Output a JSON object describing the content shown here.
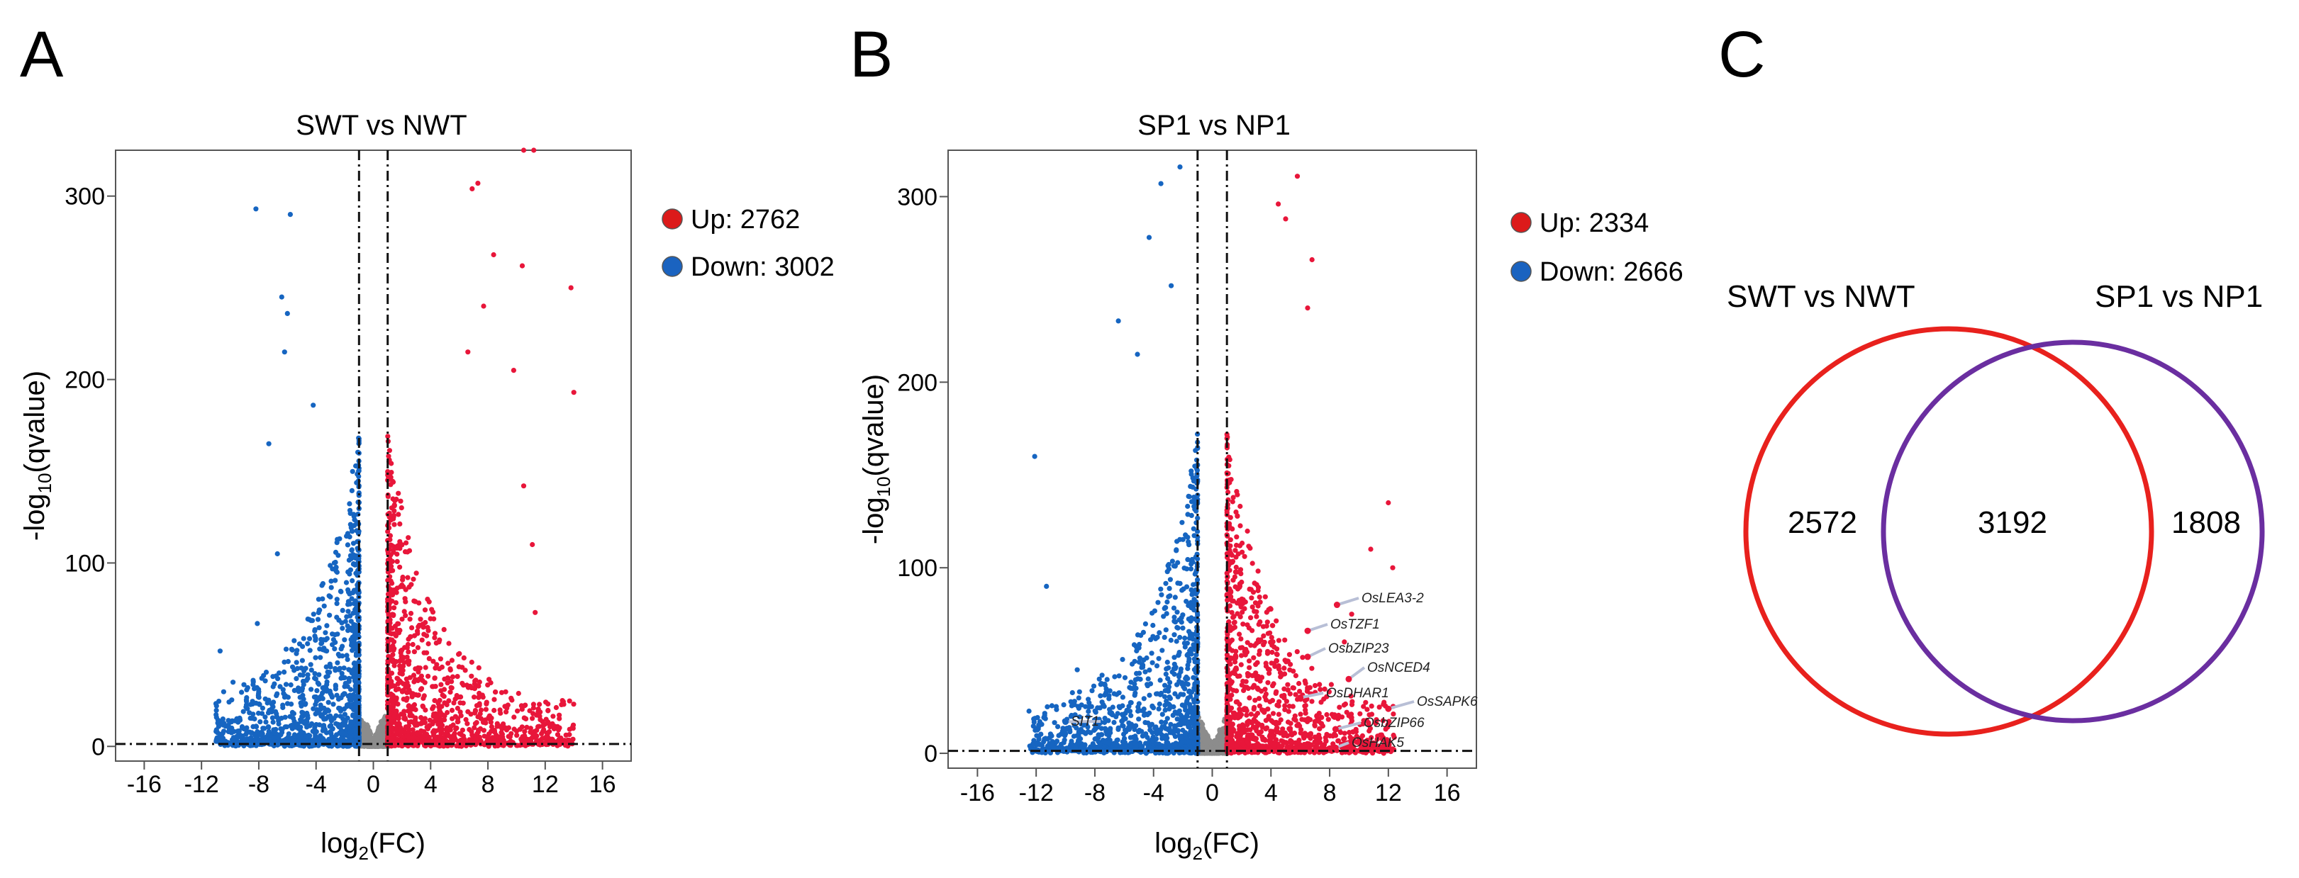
{
  "panels": {
    "A": "A",
    "B": "B",
    "C": "C"
  },
  "colors": {
    "up": "#e8163a",
    "down": "#1665c1",
    "ns": "#8c8c8c",
    "venn_left": "#e8211d",
    "venn_right": "#6a2ea0",
    "legend_up": "#dc1a1a",
    "legend_down": "#1a63c0"
  },
  "chart_data": [
    {
      "type": "scatter",
      "id": "volcano_A",
      "title": "SWT vs NWT",
      "xlabel_base": "log",
      "xlabel_sub": "2",
      "xlabel_rest": "(FC)",
      "ylabel_base": "-log",
      "ylabel_sub": "10",
      "ylabel_rest": "(qvalue)",
      "xlim": [
        -18,
        18
      ],
      "ylim": [
        -8,
        325
      ],
      "x_ticks": [
        -16,
        -12,
        -8,
        -4,
        0,
        4,
        8,
        12,
        16
      ],
      "y_ticks": [
        0,
        100,
        200,
        300
      ],
      "fc_threshold": [
        -1,
        1
      ],
      "q_threshold": 1.3,
      "legend": [
        {
          "label": "Up: 2762",
          "key": "up"
        },
        {
          "label": "Down: 3002",
          "key": "down"
        }
      ],
      "series": [
        {
          "name": "Up",
          "count": 2762,
          "x_range": [
            1,
            14
          ],
          "sample_points": [
            [
              10.5,
              325
            ],
            [
              11.2,
              325
            ],
            [
              7.3,
              307
            ],
            [
              6.9,
              304
            ],
            [
              10.4,
              262
            ],
            [
              13.8,
              250
            ],
            [
              14.0,
              193
            ],
            [
              7.7,
              240
            ],
            [
              6.6,
              215
            ],
            [
              8.4,
              268
            ],
            [
              9.8,
              205
            ],
            [
              10.5,
              142
            ],
            [
              11.1,
              110
            ],
            [
              11.3,
              73
            ]
          ]
        },
        {
          "name": "Down",
          "count": 3002,
          "x_range": [
            -11,
            -1
          ],
          "sample_points": [
            [
              -8.2,
              293
            ],
            [
              -5.8,
              290
            ],
            [
              -6.4,
              245
            ],
            [
              -6.0,
              236
            ],
            [
              -6.2,
              215
            ],
            [
              -4.2,
              186
            ],
            [
              -7.3,
              165
            ],
            [
              -6.7,
              105
            ],
            [
              -10.7,
              52
            ],
            [
              -9.8,
              35
            ],
            [
              -8.1,
              67
            ],
            [
              -8.3,
              15
            ]
          ]
        },
        {
          "name": "NS",
          "x_range": [
            -1,
            1
          ]
        }
      ]
    },
    {
      "type": "scatter",
      "id": "volcano_B",
      "title": "SP1 vs NP1",
      "xlabel_base": "log",
      "xlabel_sub": "2",
      "xlabel_rest": "(FC)",
      "ylabel_base": "-log",
      "ylabel_sub": "10",
      "ylabel_rest": "(qvalue)",
      "xlim": [
        -18,
        18
      ],
      "ylim": [
        -8,
        325
      ],
      "x_ticks": [
        -16,
        -12,
        -8,
        -4,
        0,
        4,
        8,
        12,
        16
      ],
      "y_ticks": [
        0,
        100,
        200,
        300
      ],
      "fc_threshold": [
        -1,
        1
      ],
      "q_threshold": 1.3,
      "legend": [
        {
          "label": "Up: 2334",
          "key": "up"
        },
        {
          "label": "Down: 2666",
          "key": "down"
        }
      ],
      "series": [
        {
          "name": "Up",
          "count": 2334,
          "x_range": [
            1,
            12.5
          ],
          "sample_points": [
            [
              5.8,
              311
            ],
            [
              4.5,
              296
            ],
            [
              5.0,
              288
            ],
            [
              6.8,
              266
            ],
            [
              6.5,
              240
            ],
            [
              12.0,
              135
            ],
            [
              12.3,
              100
            ],
            [
              10.8,
              110
            ],
            [
              9.5,
              75
            ],
            [
              9.0,
              60
            ]
          ]
        },
        {
          "name": "Down",
          "count": 2666,
          "x_range": [
            -12.5,
            -1
          ],
          "sample_points": [
            [
              -3.5,
              307
            ],
            [
              -2.2,
              316
            ],
            [
              -4.3,
              278
            ],
            [
              -2.8,
              252
            ],
            [
              -6.4,
              233
            ],
            [
              -5.1,
              215
            ],
            [
              -12.1,
              160
            ],
            [
              -11.3,
              90
            ],
            [
              -9.2,
              45
            ],
            [
              -7.7,
              40
            ]
          ]
        },
        {
          "name": "NS",
          "x_range": [
            -1,
            1
          ]
        }
      ],
      "annotations": [
        {
          "label": "OsLEA3-2",
          "x": 8.5,
          "y": 80
        },
        {
          "label": "OsTZF1",
          "x": 6.5,
          "y": 66
        },
        {
          "label": "OsbZIP23",
          "x": 6.5,
          "y": 52
        },
        {
          "label": "OsNCED4",
          "x": 9.3,
          "y": 40
        },
        {
          "label": "OsDHAR1",
          "x": 6.0,
          "y": 30
        },
        {
          "label": "OsSAPK6",
          "x": 12.0,
          "y": 24
        },
        {
          "label": "OsbZIP66",
          "x": 8.4,
          "y": 13
        },
        {
          "label": "OsHAK5",
          "x": 8.4,
          "y": 3
        },
        {
          "label": "SIT1",
          "x": -10.0,
          "y": 17
        }
      ]
    },
    {
      "type": "venn",
      "id": "venn_C",
      "sets": [
        {
          "name": "SWT vs NWT",
          "only": 2572,
          "color_key": "venn_left"
        },
        {
          "name": "SP1 vs NP1",
          "only": 1808,
          "color_key": "venn_right"
        }
      ],
      "intersection": 3192
    }
  ]
}
